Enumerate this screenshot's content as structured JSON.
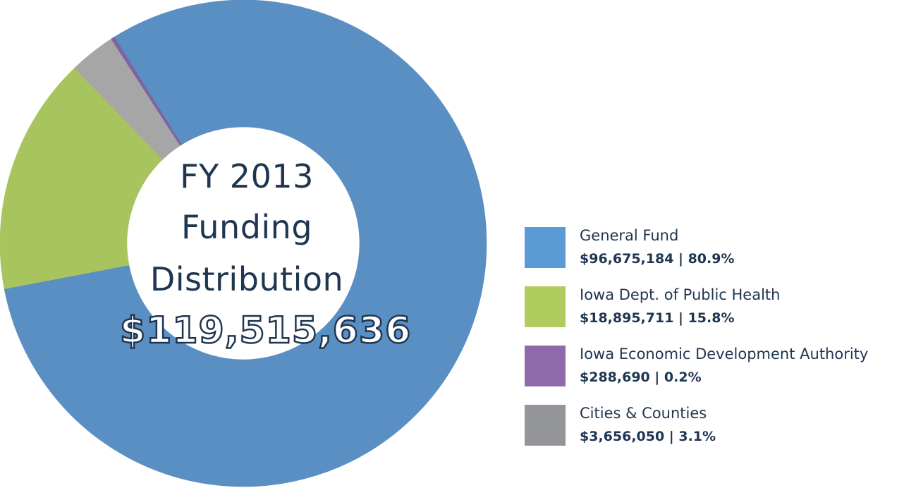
{
  "chart_data": {
    "type": "pie",
    "center": {
      "line1": "FY 2013",
      "line2": "Funding",
      "line3": "Distribution",
      "total": "$119,515,636"
    },
    "slices": [
      {
        "name": "General Fund",
        "amount": "$96,675,184",
        "percent_label": "80.9%",
        "value": 96675184,
        "percent": 80.9,
        "color": "#5a8fc3",
        "legend_color": "#5b9bd5",
        "value_text": "$96,675,184 |  80.9%"
      },
      {
        "name": "Iowa Dept. of Public Health",
        "amount": "$18,895,711",
        "percent_label": "15.8%",
        "value": 18895711,
        "percent": 15.8,
        "color": "#a8c45e",
        "legend_color": "#b0cc5e",
        "value_text": "$18,895,711  |  15.8%"
      },
      {
        "name": "Cities & Counties",
        "amount": "$3,656,050",
        "percent_label": "3.1%",
        "value": 3656050,
        "percent": 3.1,
        "color": "#a6a6a6",
        "legend_color": "#939598",
        "value_text": "$3,656,050  |  3.1%"
      },
      {
        "name": "Iowa Economic Development Authority",
        "amount": "$288,690",
        "percent_label": "0.2%",
        "value": 288690,
        "percent": 0.2,
        "color": "#8064a2",
        "legend_color": "#8e6aac",
        "value_text": "$288,690  |  0.2%"
      }
    ],
    "legend_order": [
      0,
      1,
      3,
      2
    ],
    "legend_position": "right"
  }
}
